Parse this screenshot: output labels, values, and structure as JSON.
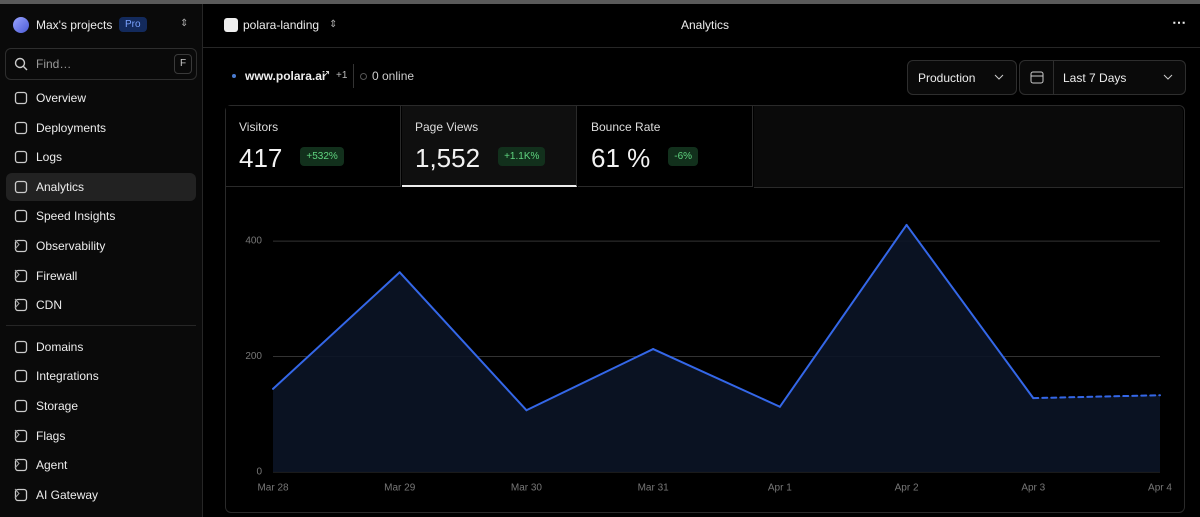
{
  "sidebar": {
    "project": "Max's projects",
    "plan": "Pro",
    "search_placeholder": "Find…",
    "search_shortcut": "F",
    "active": "Analytics",
    "nav": [
      [
        {
          "label": "Overview"
        },
        {
          "label": "Deployments"
        },
        {
          "label": "Logs"
        },
        {
          "label": "Analytics"
        },
        {
          "label": "Speed Insights"
        },
        {
          "label": "Observability",
          "submenu": true
        },
        {
          "label": "Firewall",
          "submenu": true
        },
        {
          "label": "CDN",
          "submenu": true
        }
      ],
      [
        {
          "label": "Domains"
        },
        {
          "label": "Integrations"
        },
        {
          "label": "Storage"
        },
        {
          "label": "Flags",
          "submenu": true
        },
        {
          "label": "Agent",
          "submenu": true
        },
        {
          "label": "AI Gateway",
          "submenu": true
        }
      ]
    ]
  },
  "header": {
    "project": "polara-landing",
    "title": "Analytics"
  },
  "toolbar": {
    "domain": "www.polara.ai",
    "domain_extra": "+1",
    "online": "0 online",
    "environment": "Production",
    "range": "Last 7 Days"
  },
  "stats": [
    {
      "label": "Visitors",
      "value": "417",
      "change": "+532%"
    },
    {
      "label": "Page Views",
      "value": "1,552",
      "change": "+1.1K%",
      "selected": true
    },
    {
      "label": "Bounce Rate",
      "value": "61 %",
      "change": "-6%"
    }
  ],
  "chart_data": {
    "type": "area",
    "categories": [
      "Mar 28",
      "Mar 29",
      "Mar 30",
      "Mar 31",
      "Apr 1",
      "Apr 2",
      "Apr 3",
      "Apr 4"
    ],
    "values": [
      144,
      346,
      107,
      213,
      113,
      428,
      128,
      133
    ],
    "color": "#3467e8",
    "dashed_from_index": 6,
    "ylim": [
      0,
      440
    ],
    "yticks": [
      0,
      200,
      400
    ],
    "grid": true
  }
}
